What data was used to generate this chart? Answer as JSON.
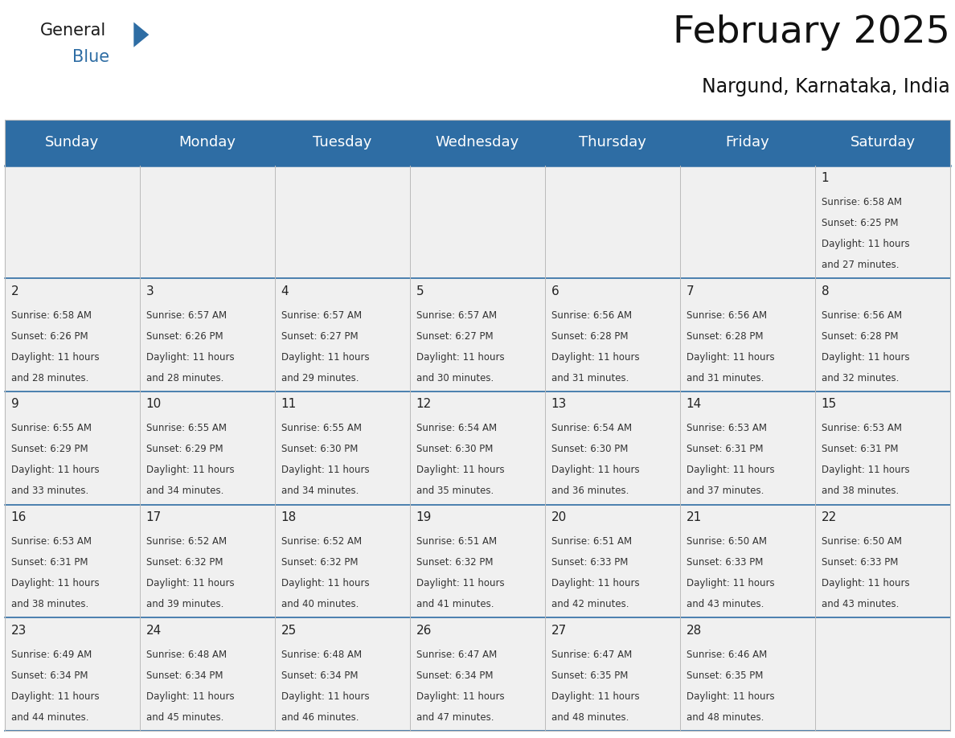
{
  "title": "February 2025",
  "subtitle": "Nargund, Karnataka, India",
  "header_bg_color": "#2E6DA4",
  "header_text_color": "#FFFFFF",
  "cell_bg": "#F0F0F0",
  "grid_color": "#BBBBBB",
  "separator_color": "#2E6DA4",
  "day_headers": [
    "Sunday",
    "Monday",
    "Tuesday",
    "Wednesday",
    "Thursday",
    "Friday",
    "Saturday"
  ],
  "title_fontsize": 34,
  "subtitle_fontsize": 17,
  "header_fontsize": 13,
  "cell_date_fontsize": 11,
  "cell_info_fontsize": 8.5,
  "days": [
    {
      "date": 1,
      "col": 6,
      "row": 0,
      "sunrise": "6:58 AM",
      "sunset": "6:25 PM",
      "daylight": "11 hours and 27 minutes."
    },
    {
      "date": 2,
      "col": 0,
      "row": 1,
      "sunrise": "6:58 AM",
      "sunset": "6:26 PM",
      "daylight": "11 hours and 28 minutes."
    },
    {
      "date": 3,
      "col": 1,
      "row": 1,
      "sunrise": "6:57 AM",
      "sunset": "6:26 PM",
      "daylight": "11 hours and 28 minutes."
    },
    {
      "date": 4,
      "col": 2,
      "row": 1,
      "sunrise": "6:57 AM",
      "sunset": "6:27 PM",
      "daylight": "11 hours and 29 minutes."
    },
    {
      "date": 5,
      "col": 3,
      "row": 1,
      "sunrise": "6:57 AM",
      "sunset": "6:27 PM",
      "daylight": "11 hours and 30 minutes."
    },
    {
      "date": 6,
      "col": 4,
      "row": 1,
      "sunrise": "6:56 AM",
      "sunset": "6:28 PM",
      "daylight": "11 hours and 31 minutes."
    },
    {
      "date": 7,
      "col": 5,
      "row": 1,
      "sunrise": "6:56 AM",
      "sunset": "6:28 PM",
      "daylight": "11 hours and 31 minutes."
    },
    {
      "date": 8,
      "col": 6,
      "row": 1,
      "sunrise": "6:56 AM",
      "sunset": "6:28 PM",
      "daylight": "11 hours and 32 minutes."
    },
    {
      "date": 9,
      "col": 0,
      "row": 2,
      "sunrise": "6:55 AM",
      "sunset": "6:29 PM",
      "daylight": "11 hours and 33 minutes."
    },
    {
      "date": 10,
      "col": 1,
      "row": 2,
      "sunrise": "6:55 AM",
      "sunset": "6:29 PM",
      "daylight": "11 hours and 34 minutes."
    },
    {
      "date": 11,
      "col": 2,
      "row": 2,
      "sunrise": "6:55 AM",
      "sunset": "6:30 PM",
      "daylight": "11 hours and 34 minutes."
    },
    {
      "date": 12,
      "col": 3,
      "row": 2,
      "sunrise": "6:54 AM",
      "sunset": "6:30 PM",
      "daylight": "11 hours and 35 minutes."
    },
    {
      "date": 13,
      "col": 4,
      "row": 2,
      "sunrise": "6:54 AM",
      "sunset": "6:30 PM",
      "daylight": "11 hours and 36 minutes."
    },
    {
      "date": 14,
      "col": 5,
      "row": 2,
      "sunrise": "6:53 AM",
      "sunset": "6:31 PM",
      "daylight": "11 hours and 37 minutes."
    },
    {
      "date": 15,
      "col": 6,
      "row": 2,
      "sunrise": "6:53 AM",
      "sunset": "6:31 PM",
      "daylight": "11 hours and 38 minutes."
    },
    {
      "date": 16,
      "col": 0,
      "row": 3,
      "sunrise": "6:53 AM",
      "sunset": "6:31 PM",
      "daylight": "11 hours and 38 minutes."
    },
    {
      "date": 17,
      "col": 1,
      "row": 3,
      "sunrise": "6:52 AM",
      "sunset": "6:32 PM",
      "daylight": "11 hours and 39 minutes."
    },
    {
      "date": 18,
      "col": 2,
      "row": 3,
      "sunrise": "6:52 AM",
      "sunset": "6:32 PM",
      "daylight": "11 hours and 40 minutes."
    },
    {
      "date": 19,
      "col": 3,
      "row": 3,
      "sunrise": "6:51 AM",
      "sunset": "6:32 PM",
      "daylight": "11 hours and 41 minutes."
    },
    {
      "date": 20,
      "col": 4,
      "row": 3,
      "sunrise": "6:51 AM",
      "sunset": "6:33 PM",
      "daylight": "11 hours and 42 minutes."
    },
    {
      "date": 21,
      "col": 5,
      "row": 3,
      "sunrise": "6:50 AM",
      "sunset": "6:33 PM",
      "daylight": "11 hours and 43 minutes."
    },
    {
      "date": 22,
      "col": 6,
      "row": 3,
      "sunrise": "6:50 AM",
      "sunset": "6:33 PM",
      "daylight": "11 hours and 43 minutes."
    },
    {
      "date": 23,
      "col": 0,
      "row": 4,
      "sunrise": "6:49 AM",
      "sunset": "6:34 PM",
      "daylight": "11 hours and 44 minutes."
    },
    {
      "date": 24,
      "col": 1,
      "row": 4,
      "sunrise": "6:48 AM",
      "sunset": "6:34 PM",
      "daylight": "11 hours and 45 minutes."
    },
    {
      "date": 25,
      "col": 2,
      "row": 4,
      "sunrise": "6:48 AM",
      "sunset": "6:34 PM",
      "daylight": "11 hours and 46 minutes."
    },
    {
      "date": 26,
      "col": 3,
      "row": 4,
      "sunrise": "6:47 AM",
      "sunset": "6:34 PM",
      "daylight": "11 hours and 47 minutes."
    },
    {
      "date": 27,
      "col": 4,
      "row": 4,
      "sunrise": "6:47 AM",
      "sunset": "6:35 PM",
      "daylight": "11 hours and 48 minutes."
    },
    {
      "date": 28,
      "col": 5,
      "row": 4,
      "sunrise": "6:46 AM",
      "sunset": "6:35 PM",
      "daylight": "11 hours and 48 minutes."
    }
  ]
}
